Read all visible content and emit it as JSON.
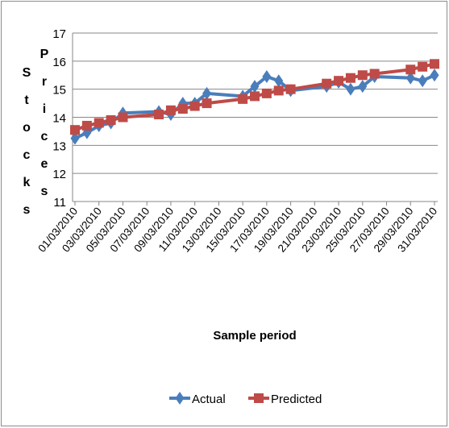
{
  "chart_data": {
    "type": "line",
    "xlabel": "Sample period",
    "ylabel_left": "Stocks",
    "ylabel_right": "Prices",
    "ylim": [
      11,
      17
    ],
    "yticks": [
      11,
      12,
      13,
      14,
      15,
      16,
      17
    ],
    "grid": "horizontal",
    "legend_position": "bottom",
    "x_start": "2010-03-01",
    "x_end": "2010-03-31",
    "xtick_labels": [
      "01/03/2010",
      "03/03/2010",
      "05/03/2010",
      "07/03/2010",
      "09/03/2010",
      "11/03/2010",
      "13/03/2010",
      "15/03/2010",
      "17/03/2010",
      "19/03/2010",
      "21/03/2010",
      "23/03/2010",
      "25/03/2010",
      "27/03/2010",
      "29/03/2010",
      "31/03/2010"
    ],
    "series": [
      {
        "name": "Actual",
        "color": "#4a7ebb",
        "marker": "diamond",
        "points": [
          [
            "2010-03-01",
            13.25
          ],
          [
            "2010-03-02",
            13.45
          ],
          [
            "2010-03-03",
            13.7
          ],
          [
            "2010-03-04",
            13.8
          ],
          [
            "2010-03-05",
            14.15
          ],
          [
            "2010-03-08",
            14.2
          ],
          [
            "2010-03-09",
            14.1
          ],
          [
            "2010-03-10",
            14.5
          ],
          [
            "2010-03-11",
            14.5
          ],
          [
            "2010-03-12",
            14.85
          ],
          [
            "2010-03-15",
            14.75
          ],
          [
            "2010-03-16",
            15.1
          ],
          [
            "2010-03-17",
            15.45
          ],
          [
            "2010-03-18",
            15.3
          ],
          [
            "2010-03-19",
            14.95
          ],
          [
            "2010-03-22",
            15.1
          ],
          [
            "2010-03-23",
            15.25
          ],
          [
            "2010-03-24",
            15.0
          ],
          [
            "2010-03-25",
            15.1
          ],
          [
            "2010-03-26",
            15.45
          ],
          [
            "2010-03-29",
            15.4
          ],
          [
            "2010-03-30",
            15.3
          ],
          [
            "2010-03-31",
            15.5
          ]
        ]
      },
      {
        "name": "Predicted",
        "color": "#be4b48",
        "marker": "square",
        "points": [
          [
            "2010-03-01",
            13.55
          ],
          [
            "2010-03-02",
            13.7
          ],
          [
            "2010-03-03",
            13.8
          ],
          [
            "2010-03-04",
            13.9
          ],
          [
            "2010-03-05",
            14.0
          ],
          [
            "2010-03-08",
            14.1
          ],
          [
            "2010-03-09",
            14.25
          ],
          [
            "2010-03-10",
            14.3
          ],
          [
            "2010-03-11",
            14.4
          ],
          [
            "2010-03-12",
            14.5
          ],
          [
            "2010-03-15",
            14.65
          ],
          [
            "2010-03-16",
            14.75
          ],
          [
            "2010-03-17",
            14.85
          ],
          [
            "2010-03-18",
            14.95
          ],
          [
            "2010-03-19",
            15.0
          ],
          [
            "2010-03-22",
            15.2
          ],
          [
            "2010-03-23",
            15.3
          ],
          [
            "2010-03-24",
            15.4
          ],
          [
            "2010-03-25",
            15.5
          ],
          [
            "2010-03-26",
            15.55
          ],
          [
            "2010-03-29",
            15.7
          ],
          [
            "2010-03-30",
            15.8
          ],
          [
            "2010-03-31",
            15.9
          ]
        ]
      }
    ]
  }
}
